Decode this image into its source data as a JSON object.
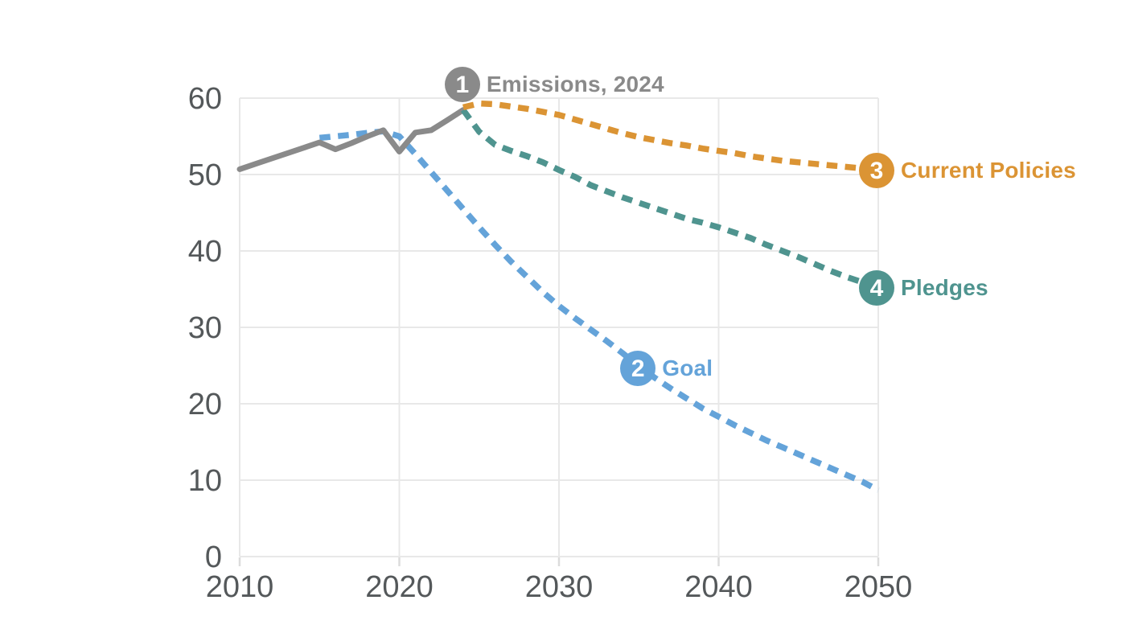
{
  "figure": {
    "background": "#ffffff",
    "description": "Greenhouse-gas emissions history and three projection scenarios to 2050"
  },
  "chart_data": {
    "type": "line",
    "title": "",
    "xlabel": "",
    "ylabel": "",
    "x_range": [
      2010,
      2050
    ],
    "y_range": [
      0,
      60
    ],
    "x_ticks": [
      "2010",
      "2020",
      "2030",
      "2040",
      "2050"
    ],
    "x_tick_values": [
      2010,
      2020,
      2030,
      2040,
      2050
    ],
    "y_ticks": [
      "0",
      "10",
      "20",
      "30",
      "40",
      "50",
      "60"
    ],
    "y_tick_values": [
      0,
      10,
      20,
      30,
      40,
      50,
      60
    ],
    "grid": true,
    "legend_position": "inline-annotations",
    "colors": {
      "history": "#8a8a8a",
      "goal": "#64a3d9",
      "pledges": "#4f948f",
      "current_policies": "#db9434",
      "grid": "#e8e8e8",
      "tick_mark": "#dcdcdc",
      "tick_text": "#54585a",
      "background": "#ffffff"
    },
    "series": [
      {
        "name": "Goal",
        "key": "goal",
        "style": "dashed",
        "color": "#64a3d9",
        "points": [
          [
            2015,
            54.8
          ],
          [
            2016,
            55.0
          ],
          [
            2017,
            55.2
          ],
          [
            2018,
            55.45
          ],
          [
            2019,
            55.65
          ],
          [
            2020,
            55.0
          ],
          [
            2021,
            52.7
          ],
          [
            2022,
            50.3
          ],
          [
            2023,
            47.9
          ],
          [
            2024,
            45.5
          ],
          [
            2025,
            43.1
          ],
          [
            2026,
            40.8
          ],
          [
            2027,
            38.6
          ],
          [
            2028,
            36.6
          ],
          [
            2029,
            34.6
          ],
          [
            2030,
            32.8
          ],
          [
            2031,
            31.2
          ],
          [
            2032,
            29.7
          ],
          [
            2033,
            28.2
          ],
          [
            2034,
            26.6
          ],
          [
            2035,
            24.9
          ],
          [
            2036,
            23.4
          ],
          [
            2037,
            22.0
          ],
          [
            2038,
            20.7
          ],
          [
            2039,
            19.4
          ],
          [
            2040,
            18.3
          ],
          [
            2041,
            17.2
          ],
          [
            2042,
            16.2
          ],
          [
            2043,
            15.2
          ],
          [
            2044,
            14.3
          ],
          [
            2045,
            13.4
          ],
          [
            2046,
            12.5
          ],
          [
            2047,
            11.6
          ],
          [
            2048,
            10.7
          ],
          [
            2049,
            9.8
          ],
          [
            2050,
            8.7
          ]
        ]
      },
      {
        "name": "Emissions (history)",
        "key": "history",
        "style": "solid",
        "color": "#8a8a8a",
        "points": [
          [
            2010,
            50.7
          ],
          [
            2011,
            51.4
          ],
          [
            2012,
            52.1
          ],
          [
            2013,
            52.8
          ],
          [
            2014,
            53.5
          ],
          [
            2015,
            54.2
          ],
          [
            2016,
            53.3
          ],
          [
            2017,
            54.1
          ],
          [
            2018,
            55.0
          ],
          [
            2019,
            55.8
          ],
          [
            2020,
            53.0
          ],
          [
            2021,
            55.5
          ],
          [
            2022,
            55.8
          ],
          [
            2023,
            57.1
          ],
          [
            2024,
            58.45
          ]
        ]
      },
      {
        "name": "Pledges",
        "key": "pledges",
        "style": "dashed",
        "color": "#4f948f",
        "points": [
          [
            2024,
            58.45
          ],
          [
            2025,
            55.6
          ],
          [
            2026,
            53.9
          ],
          [
            2027,
            53.1
          ],
          [
            2028,
            52.4
          ],
          [
            2029,
            51.6
          ],
          [
            2030,
            50.6
          ],
          [
            2031,
            49.7
          ],
          [
            2032,
            48.6
          ],
          [
            2033,
            47.8
          ],
          [
            2034,
            47.0
          ],
          [
            2035,
            46.3
          ],
          [
            2036,
            45.6
          ],
          [
            2037,
            44.9
          ],
          [
            2038,
            44.2
          ],
          [
            2039,
            43.7
          ],
          [
            2040,
            43.1
          ],
          [
            2041,
            42.4
          ],
          [
            2042,
            41.7
          ],
          [
            2043,
            40.8
          ],
          [
            2044,
            40.0
          ],
          [
            2045,
            39.2
          ],
          [
            2046,
            38.3
          ],
          [
            2047,
            37.4
          ],
          [
            2048,
            36.6
          ],
          [
            2049,
            35.9
          ],
          [
            2050,
            35.4
          ]
        ]
      },
      {
        "name": "Current Policies",
        "key": "current_policies",
        "style": "dashed",
        "color": "#db9434",
        "points": [
          [
            2024,
            58.8
          ],
          [
            2025,
            59.3
          ],
          [
            2026,
            59.2
          ],
          [
            2027,
            58.9
          ],
          [
            2028,
            58.6
          ],
          [
            2029,
            58.2
          ],
          [
            2030,
            57.8
          ],
          [
            2031,
            57.2
          ],
          [
            2032,
            56.6
          ],
          [
            2033,
            56.0
          ],
          [
            2034,
            55.4
          ],
          [
            2035,
            54.9
          ],
          [
            2036,
            54.5
          ],
          [
            2037,
            54.1
          ],
          [
            2038,
            53.8
          ],
          [
            2039,
            53.4
          ],
          [
            2040,
            53.1
          ],
          [
            2041,
            52.8
          ],
          [
            2042,
            52.4
          ],
          [
            2043,
            52.1
          ],
          [
            2044,
            51.8
          ],
          [
            2045,
            51.6
          ],
          [
            2046,
            51.4
          ],
          [
            2047,
            51.2
          ],
          [
            2048,
            51.0
          ],
          [
            2049,
            50.8
          ],
          [
            2050,
            50.6
          ]
        ]
      }
    ],
    "annotations": [
      {
        "number": "1",
        "label": "Emissions, 2024",
        "color": "#8a8a8a",
        "at_year": 2024,
        "at_value": 58.45
      },
      {
        "number": "2",
        "label": "Goal",
        "color": "#64a3d9",
        "at_year": 2035,
        "at_value": 24.9
      },
      {
        "number": "3",
        "label": "Current Policies",
        "color": "#db9434",
        "at_year": 2050,
        "at_value": 50.6
      },
      {
        "number": "4",
        "label": "Pledges",
        "color": "#4f948f",
        "at_year": 2050,
        "at_value": 35.4
      }
    ]
  }
}
